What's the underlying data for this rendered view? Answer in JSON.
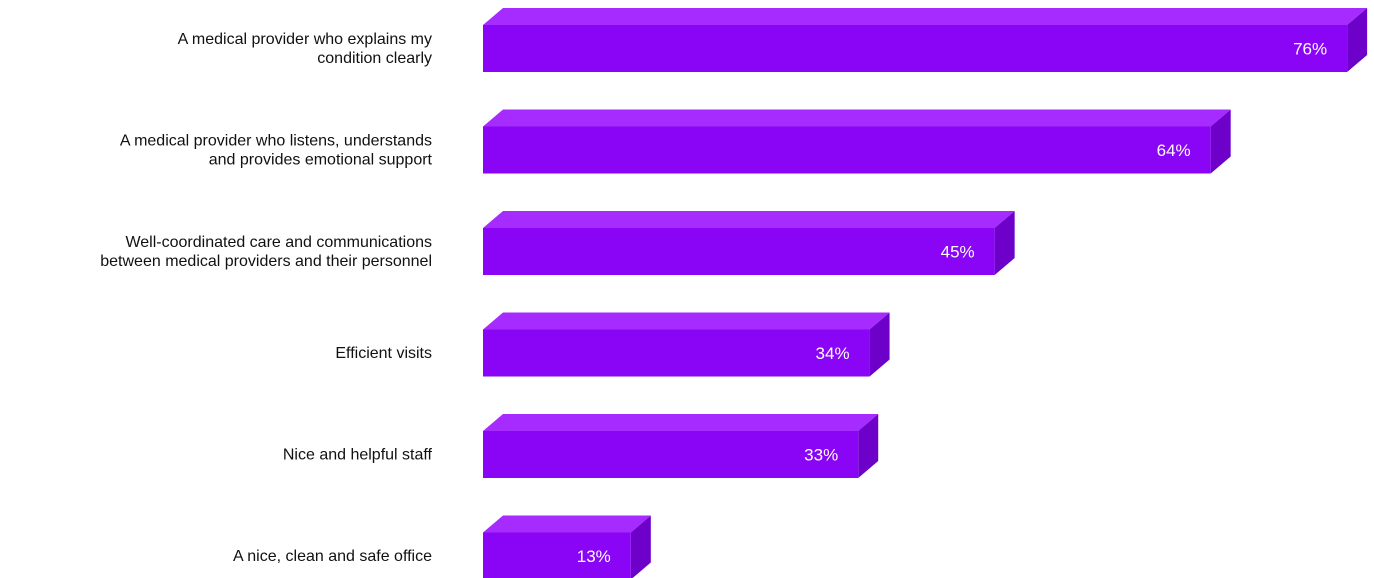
{
  "chart_data": {
    "type": "bar3d",
    "categories": [
      [
        "A medical provider who explains my",
        "condition clearly"
      ],
      [
        "A medical provider who listens, understands",
        "and provides emotional support"
      ],
      [
        "Well-coordinated care and communications",
        "between medical providers and their personnel"
      ],
      [
        "Efficient visits"
      ],
      [
        "Nice and helpful staff"
      ],
      [
        "A nice, clean and safe office"
      ]
    ],
    "values": [
      76,
      64,
      45,
      34,
      33,
      13
    ],
    "value_labels": [
      "76%",
      "64%",
      "45%",
      "34%",
      "33%",
      "13%"
    ],
    "color": "#8a05f5"
  }
}
